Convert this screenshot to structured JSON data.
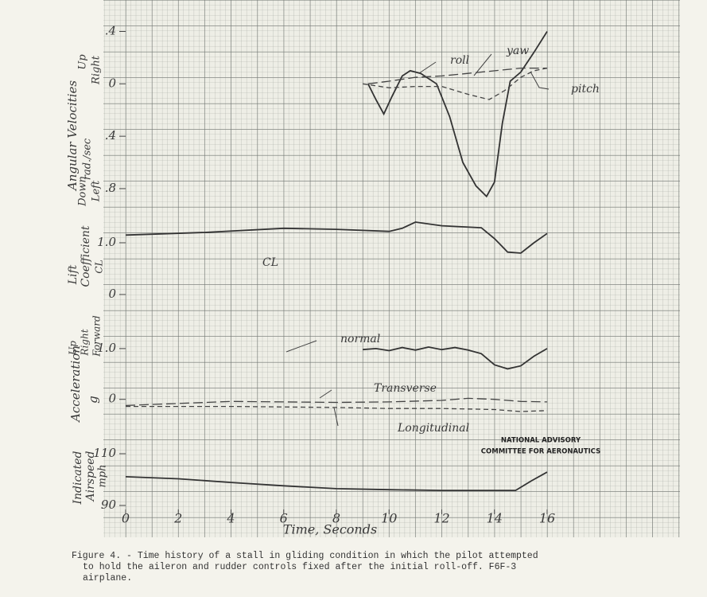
{
  "chart_data": [
    {
      "type": "line",
      "xlim": [
        0,
        16
      ],
      "ylabel": [
        "Angular Velocities",
        "rad./sec",
        "Up",
        "Right",
        "Down",
        "Left"
      ],
      "ylim": [
        -0.94,
        0.64
      ],
      "yticks": [
        {
          "value": 0.4,
          "label": ".4"
        },
        0,
        {
          "value": -0.4,
          "label": ".4"
        },
        {
          "value": -0.8,
          "label": ".8"
        }
      ],
      "series": [
        {
          "name": "roll",
          "color": "#333333",
          "style": "solid",
          "x": [
            9.2,
            9.5,
            9.8,
            10.1,
            10.5,
            10.8,
            11.2,
            11.8,
            12.3,
            12.8,
            13.3,
            13.7,
            14.0,
            14.3,
            14.6,
            15.0,
            15.5,
            16.0
          ],
          "values": [
            0,
            -0.12,
            -0.23,
            -0.1,
            0.06,
            0.1,
            0.08,
            0,
            -0.25,
            -0.6,
            -0.78,
            -0.86,
            -0.75,
            -0.3,
            0.02,
            0.09,
            0.24,
            0.4
          ]
        },
        {
          "name": "yaw",
          "color": "#444444",
          "style": "long-dash",
          "x": [
            9.2,
            10,
            11,
            12,
            13,
            14,
            15,
            16
          ],
          "values": [
            0,
            0.02,
            0.05,
            0.06,
            0.08,
            0.1,
            0.12,
            0.12
          ]
        },
        {
          "name": "pitch",
          "color": "#444444",
          "style": "dashed",
          "x": [
            9,
            10,
            11,
            12,
            13,
            13.8,
            14.4,
            15,
            15.5,
            16
          ],
          "values": [
            0,
            -0.03,
            -0.02,
            -0.02,
            -0.08,
            -0.12,
            -0.05,
            0.05,
            0.1,
            0.12
          ]
        }
      ]
    },
    {
      "type": "line",
      "xlim": [
        0,
        16
      ],
      "ylabel": [
        "Lift",
        "Coefficient",
        "CL"
      ],
      "ylim": [
        -0.4,
        1.6
      ],
      "yticks": [
        {
          "value": 1,
          "label": "1.0"
        },
        0
      ],
      "series": [
        {
          "name": "CL",
          "color": "#333333",
          "style": "solid",
          "x": [
            0,
            3,
            6,
            8,
            10,
            10.5,
            11,
            12,
            13.5,
            14,
            14.5,
            15,
            15.5,
            16
          ],
          "values": [
            1.15,
            1.2,
            1.28,
            1.26,
            1.22,
            1.28,
            1.4,
            1.33,
            1.29,
            1.08,
            0.82,
            0.8,
            1.0,
            1.18
          ]
        }
      ]
    },
    {
      "type": "line",
      "xlim": [
        0,
        16
      ],
      "ylabel": [
        "Acceleration",
        "g",
        "Up",
        "Right",
        "Forward"
      ],
      "ylim": [
        -0.6,
        1.5
      ],
      "yticks": [
        {
          "value": 1,
          "label": "1.0"
        },
        0
      ],
      "series": [
        {
          "name": "normal",
          "color": "#333333",
          "style": "solid",
          "x": [
            9,
            9.5,
            10,
            10.5,
            11,
            11.5,
            12,
            12.5,
            13,
            13.5,
            14,
            14.5,
            15,
            15.5,
            16
          ],
          "values": [
            0.98,
            1.0,
            0.96,
            1.02,
            0.97,
            1.03,
            0.98,
            1.02,
            0.97,
            0.9,
            0.68,
            0.6,
            0.66,
            0.85,
            1.0
          ]
        },
        {
          "name": "Transverse",
          "color": "#444444",
          "style": "long-dash",
          "x": [
            0,
            4,
            8,
            10,
            12,
            13,
            14,
            15,
            16
          ],
          "values": [
            -0.12,
            -0.04,
            -0.06,
            -0.05,
            -0.02,
            0.02,
            0,
            -0.04,
            -0.05
          ]
        },
        {
          "name": "Longitudinal",
          "color": "#444444",
          "style": "dashed",
          "x": [
            0,
            4,
            8,
            10,
            12,
            14,
            15,
            16
          ],
          "values": [
            -0.14,
            -0.14,
            -0.16,
            -0.18,
            -0.18,
            -0.2,
            -0.24,
            -0.22
          ]
        }
      ]
    },
    {
      "type": "line",
      "xlim": [
        0,
        16
      ],
      "ylabel": [
        "Indicated",
        "Airspeed",
        "mph"
      ],
      "ylim": [
        82,
        118
      ],
      "yticks": [
        110,
        90
      ],
      "xticks": [
        0,
        2,
        4,
        6,
        8,
        10,
        12,
        14,
        16
      ],
      "xlabel": "Time, Seconds",
      "series": [
        {
          "name": "airspeed",
          "color": "#333333",
          "style": "solid",
          "x": [
            0,
            2,
            4,
            6,
            8,
            10,
            12,
            14,
            14.8,
            15.4,
            16
          ],
          "values": [
            101.1,
            100.3,
            98.9,
            97.6,
            96.5,
            96.1,
            95.8,
            95.8,
            95.8,
            99.5,
            102.9
          ]
        }
      ]
    }
  ],
  "figure": {
    "agency": [
      "NATIONAL ADVISORY",
      "COMMITTEE FOR AERONAUTICS"
    ],
    "caption": [
      "Figure 4. - Time history of a stall in gliding condition in which the pilot attempted",
      "to hold the aileron and rudder controls fixed after the initial roll-off.  F6F-3",
      "airplane."
    ]
  }
}
